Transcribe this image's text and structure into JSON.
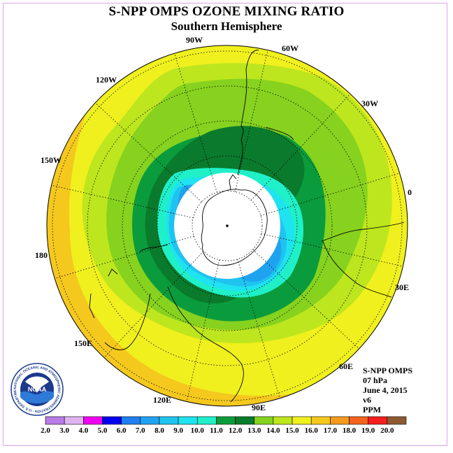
{
  "title": "S-NPP OMPS OZONE MIXING RATIO",
  "subtitle": "Southern Hemisphere",
  "longitude_labels": [
    "90W",
    "60W",
    "30W",
    "0",
    "30E",
    "60E",
    "90E",
    "120E",
    "150E",
    "180",
    "150W",
    "120W"
  ],
  "info": {
    "instrument": "S-NPP OMPS",
    "level": "07 hPa",
    "date": "June 4, 2015",
    "version": "v6",
    "units": "PPM"
  },
  "logo": {
    "text": "NOAA",
    "ring_text": "NATIONAL OCEANIC AND ATMOSPHERIC ADMINISTRATION · U.S. DEPARTMENT OF COMMERCE"
  },
  "colorbar": {
    "ticks": [
      "2.0",
      "3.0",
      "4.0",
      "5.0",
      "6.0",
      "7.0",
      "8.0",
      "9.0",
      "10.0",
      "11.0",
      "12.0",
      "13.0",
      "14.0",
      "15.0",
      "16.0",
      "17.0",
      "18.0",
      "19.0",
      "20.0"
    ],
    "colors": [
      "#b87ce6",
      "#e0b3ef",
      "#f000f0",
      "#0000f0",
      "#1f7ff0",
      "#1fa3f0",
      "#1fc3f0",
      "#1fe3f0",
      "#1ff0c8",
      "#0a9c3c",
      "#0a7a2c",
      "#86d21e",
      "#bde61e",
      "#f0f01e",
      "#f5c81e",
      "#f59a1e",
      "#f5641e",
      "#f51e1e",
      "#8c5a32"
    ]
  },
  "map_colors": {
    "yellow": "#f0f01e",
    "orange": "#f5c81e",
    "light_green": "#bde61e",
    "green": "#86d21e",
    "mid_green": "#0a9c3c",
    "dark_green": "#0a7a2c",
    "cyan": "#1fe3f0",
    "turquoise": "#1ff0c8",
    "light_blue": "#1fc3f0",
    "blue": "#1fa3f0"
  }
}
